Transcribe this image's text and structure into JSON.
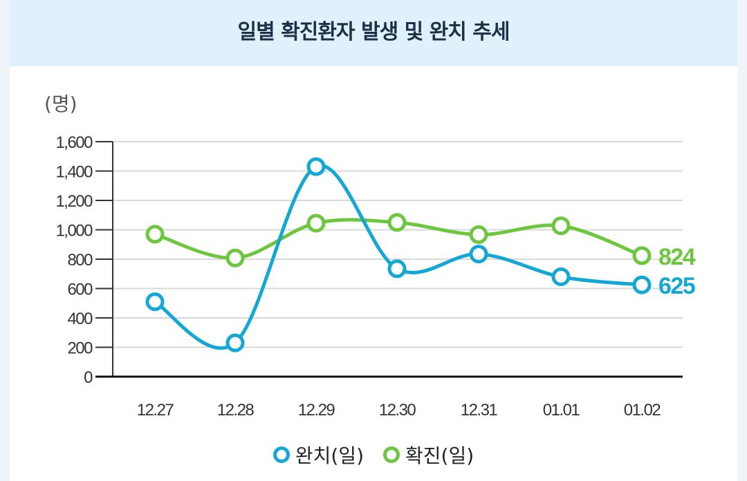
{
  "chart_data": {
    "type": "line",
    "title": "일별 확진환자 발생 및 완치 추세",
    "ylabel": "(명)",
    "xlabel": "",
    "ylim": [
      0,
      1600
    ],
    "yticks": [
      "0",
      "200",
      "400",
      "600",
      "800",
      "1,000",
      "1,200",
      "1,400",
      "1,600"
    ],
    "ytick_values": [
      0,
      200,
      400,
      600,
      800,
      1000,
      1200,
      1400,
      1600
    ],
    "categories": [
      "12.27",
      "12.28",
      "12.29",
      "12.30",
      "12.31",
      "01.01",
      "01.02"
    ],
    "grid": true,
    "series": [
      {
        "name": "완치(일)",
        "color": "#12a7d4",
        "values": [
          510,
          230,
          1430,
          735,
          835,
          680,
          625
        ],
        "end_label": "625"
      },
      {
        "name": "확진(일)",
        "color": "#6cc63e",
        "values": [
          970,
          808,
          1045,
          1050,
          967,
          1027,
          824
        ],
        "end_label": "824"
      }
    ]
  }
}
